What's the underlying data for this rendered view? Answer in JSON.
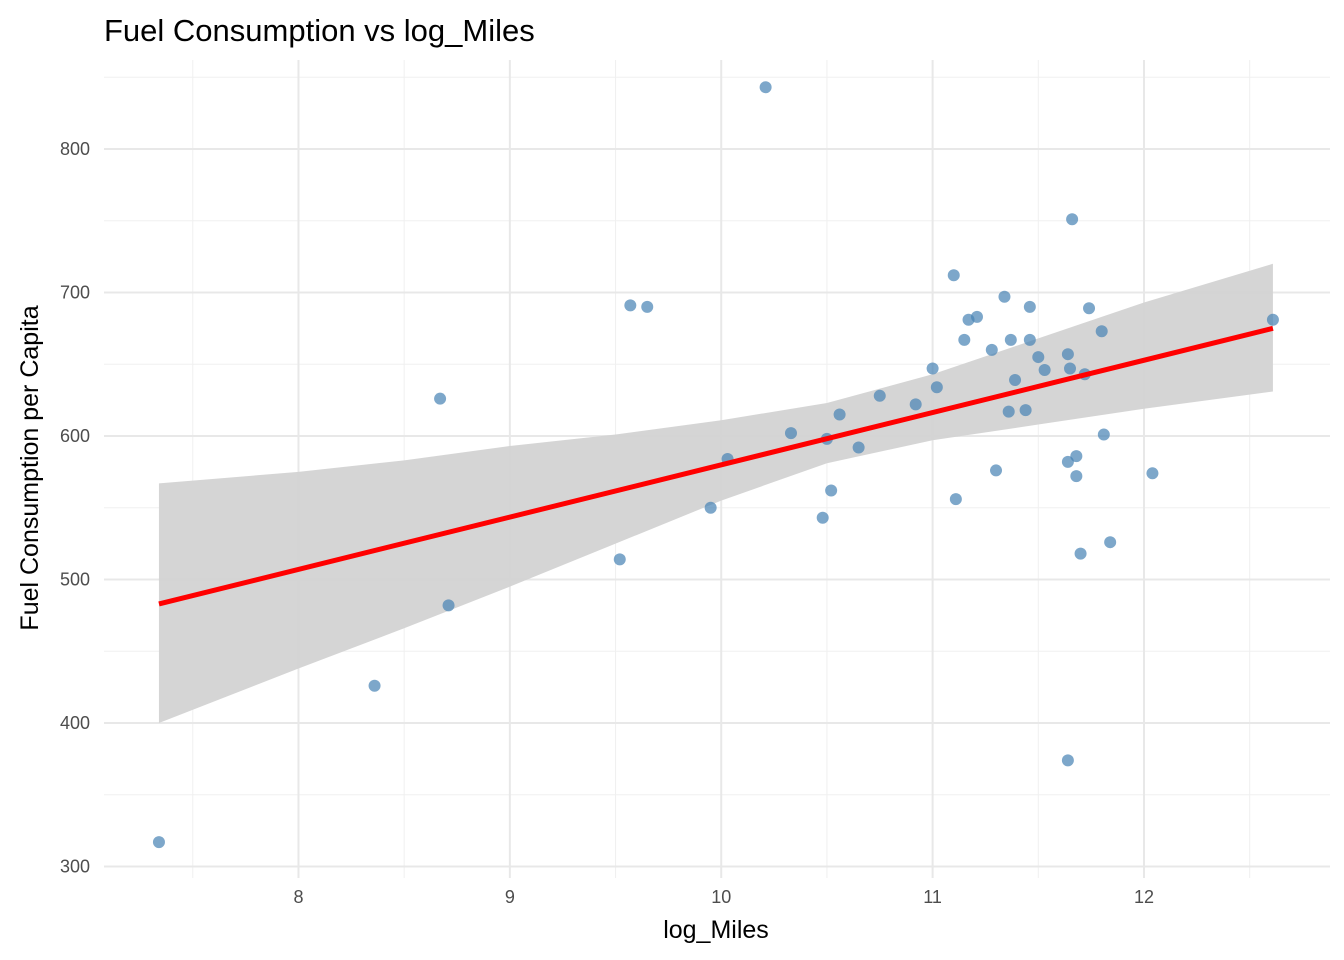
{
  "chart_data": {
    "type": "scatter",
    "title": "Fuel Consumption vs log_Miles",
    "xlabel": "log_Miles",
    "ylabel": "Fuel Consumption per Capita",
    "xlim": [
      7.08,
      12.88
    ],
    "ylim": [
      292,
      862
    ],
    "x_ticks": [
      8,
      9,
      10,
      11,
      12
    ],
    "y_ticks": [
      300,
      400,
      500,
      600,
      700,
      800
    ],
    "grid": true,
    "point_color": "#4682b4",
    "line_color": "#ff0000",
    "band_color": "#d3d3d3",
    "points": [
      [
        7.34,
        317
      ],
      [
        8.36,
        426
      ],
      [
        8.67,
        626
      ],
      [
        8.71,
        482
      ],
      [
        9.52,
        514
      ],
      [
        9.57,
        691
      ],
      [
        9.65,
        690
      ],
      [
        9.95,
        550
      ],
      [
        10.03,
        584
      ],
      [
        10.21,
        843
      ],
      [
        10.33,
        602
      ],
      [
        10.48,
        543
      ],
      [
        10.5,
        598
      ],
      [
        10.52,
        562
      ],
      [
        10.56,
        615
      ],
      [
        10.65,
        592
      ],
      [
        10.75,
        628
      ],
      [
        10.92,
        622
      ],
      [
        11.0,
        647
      ],
      [
        11.02,
        634
      ],
      [
        11.1,
        712
      ],
      [
        11.11,
        556
      ],
      [
        11.15,
        667
      ],
      [
        11.17,
        681
      ],
      [
        11.21,
        683
      ],
      [
        11.28,
        660
      ],
      [
        11.3,
        576
      ],
      [
        11.34,
        697
      ],
      [
        11.36,
        617
      ],
      [
        11.37,
        667
      ],
      [
        11.39,
        639
      ],
      [
        11.44,
        618
      ],
      [
        11.46,
        690
      ],
      [
        11.46,
        667
      ],
      [
        11.5,
        655
      ],
      [
        11.53,
        646
      ],
      [
        11.64,
        657
      ],
      [
        11.64,
        582
      ],
      [
        11.64,
        374
      ],
      [
        11.65,
        647
      ],
      [
        11.66,
        751
      ],
      [
        11.68,
        586
      ],
      [
        11.68,
        572
      ],
      [
        11.7,
        518
      ],
      [
        11.72,
        643
      ],
      [
        11.74,
        689
      ],
      [
        11.8,
        673
      ],
      [
        11.81,
        601
      ],
      [
        11.84,
        526
      ],
      [
        12.04,
        574
      ],
      [
        12.61,
        681
      ]
    ],
    "fit_line": [
      [
        7.34,
        483
      ],
      [
        12.61,
        675
      ]
    ],
    "confidence_band": [
      {
        "x": 7.34,
        "lo": 400,
        "hi": 567
      },
      {
        "x": 8.0,
        "lo": 438,
        "hi": 575
      },
      {
        "x": 8.5,
        "lo": 466,
        "hi": 583
      },
      {
        "x": 9.0,
        "lo": 495,
        "hi": 593
      },
      {
        "x": 9.5,
        "lo": 525,
        "hi": 601
      },
      {
        "x": 10.0,
        "lo": 555,
        "hi": 611
      },
      {
        "x": 10.5,
        "lo": 581,
        "hi": 623
      },
      {
        "x": 11.0,
        "lo": 597,
        "hi": 643
      },
      {
        "x": 11.5,
        "lo": 608,
        "hi": 668
      },
      {
        "x": 12.0,
        "lo": 619,
        "hi": 693
      },
      {
        "x": 12.61,
        "lo": 631,
        "hi": 720
      }
    ]
  }
}
